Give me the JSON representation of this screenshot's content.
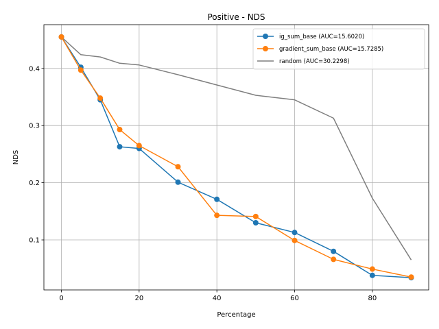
{
  "chart_data": {
    "type": "line",
    "title": "Positive - NDS",
    "xlabel": "Percentage",
    "ylabel": "NDS",
    "xlim": [
      -4.5,
      94.5
    ],
    "ylim": [
      0.0125,
      0.4765
    ],
    "xticks": [
      0,
      20,
      40,
      60,
      80
    ],
    "yticks": [
      0.1,
      0.2,
      0.3,
      0.4
    ],
    "xtick_labels": [
      "0",
      "20",
      "40",
      "60",
      "80"
    ],
    "ytick_labels": [
      "0.1",
      "0.2",
      "0.3",
      "0.4"
    ],
    "grid": true,
    "legend_position": "top-right",
    "series": [
      {
        "name": "ig_sum_base (AUC=15.6020)",
        "color": "#1f77b4",
        "marker": "circle",
        "x": [
          0,
          5,
          10,
          15,
          20,
          30,
          40,
          50,
          60,
          70,
          80,
          90
        ],
        "y": [
          0.455,
          0.402,
          0.345,
          0.263,
          0.26,
          0.201,
          0.171,
          0.13,
          0.113,
          0.08,
          0.038,
          0.034
        ]
      },
      {
        "name": "gradient_sum_base (AUC=15.7285)",
        "color": "#ff7f0e",
        "marker": "circle",
        "x": [
          0,
          5,
          10,
          15,
          20,
          30,
          40,
          50,
          60,
          70,
          80,
          90
        ],
        "y": [
          0.455,
          0.397,
          0.348,
          0.293,
          0.265,
          0.228,
          0.143,
          0.141,
          0.099,
          0.066,
          0.049,
          0.035
        ]
      },
      {
        "name": "random (AUC=30.2298)",
        "color": "#7f7f7f",
        "marker": "none",
        "x": [
          0,
          5,
          10,
          15,
          20,
          30,
          40,
          50,
          60,
          70,
          80,
          90
        ],
        "y": [
          0.455,
          0.424,
          0.42,
          0.409,
          0.406,
          0.389,
          0.371,
          0.353,
          0.345,
          0.313,
          0.173,
          0.065
        ]
      }
    ]
  }
}
